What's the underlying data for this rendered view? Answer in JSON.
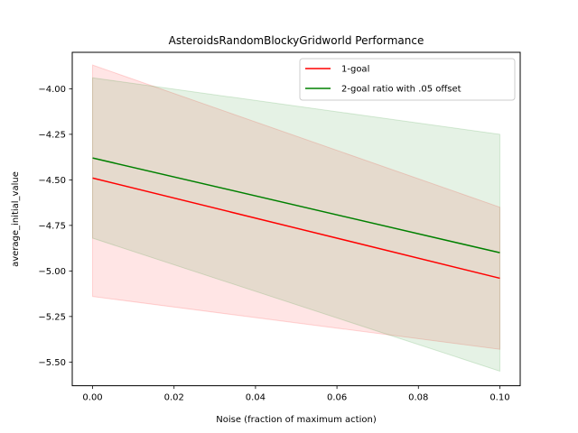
{
  "chart_data": {
    "type": "line",
    "title": "AsteroidsRandomBlockyGridworld Performance",
    "xlabel": "Noise (fraction of maximum action)",
    "ylabel": "average_initial_value",
    "x": [
      0.0,
      0.1
    ],
    "xlim": [
      -0.005,
      0.105
    ],
    "ylim": [
      -5.63,
      -3.8
    ],
    "xticks": [
      0.0,
      0.02,
      0.04,
      0.06,
      0.08,
      0.1
    ],
    "xtick_labels": [
      "0.00",
      "0.02",
      "0.04",
      "0.06",
      "0.08",
      "0.10"
    ],
    "yticks": [
      -5.5,
      -5.25,
      -5.0,
      -4.75,
      -4.5,
      -4.25,
      -4.0
    ],
    "ytick_labels": [
      "−5.50",
      "−5.25",
      "−5.00",
      "−4.75",
      "−4.50",
      "−4.25",
      "−4.00"
    ],
    "legend_position": "top-right",
    "grid": false,
    "series": [
      {
        "name": "1-goal",
        "color": "#ff0000",
        "values": [
          -4.49,
          -5.04
        ],
        "band_lower": [
          -5.14,
          -5.43
        ],
        "band_upper": [
          -3.87,
          -4.65
        ]
      },
      {
        "name": "2-goal ratio with .05 offset",
        "color": "#008000",
        "values": [
          -4.38,
          -4.9
        ],
        "band_lower": [
          -4.82,
          -5.55
        ],
        "band_upper": [
          -3.94,
          -4.25
        ]
      }
    ]
  }
}
